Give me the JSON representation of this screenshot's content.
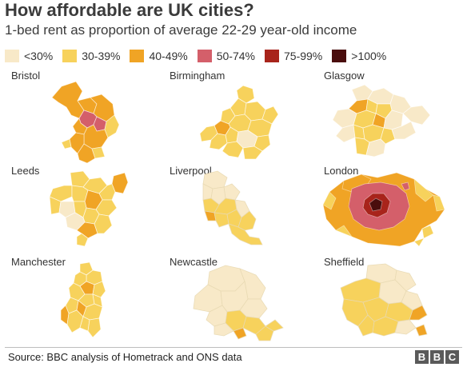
{
  "header": {
    "title": "How affordable are UK cities?",
    "subtitle": "1-bed rent as proportion of average 22-29 year-old income"
  },
  "legend": [
    {
      "label": "<30%",
      "color": "#f8e9c8"
    },
    {
      "label": "30-39%",
      "color": "#f7d25c"
    },
    {
      "label": "40-49%",
      "color": "#f0a425"
    },
    {
      "label": "50-74%",
      "color": "#d45f6a"
    },
    {
      "label": "75-99%",
      "color": "#a8241b"
    },
    {
      "label": ">100%",
      "color": "#4a0d0d"
    }
  ],
  "cities": [
    {
      "name": "Bristol"
    },
    {
      "name": "Birmingham"
    },
    {
      "name": "Glasgow"
    },
    {
      "name": "Leeds"
    },
    {
      "name": "Liverpool"
    },
    {
      "name": "London"
    },
    {
      "name": "Manchester"
    },
    {
      "name": "Newcastle"
    },
    {
      "name": "Sheffield"
    }
  ],
  "footer": {
    "source": "Source: BBC analysis of Hometrack and ONS data",
    "logo": [
      "B",
      "B",
      "C"
    ]
  }
}
